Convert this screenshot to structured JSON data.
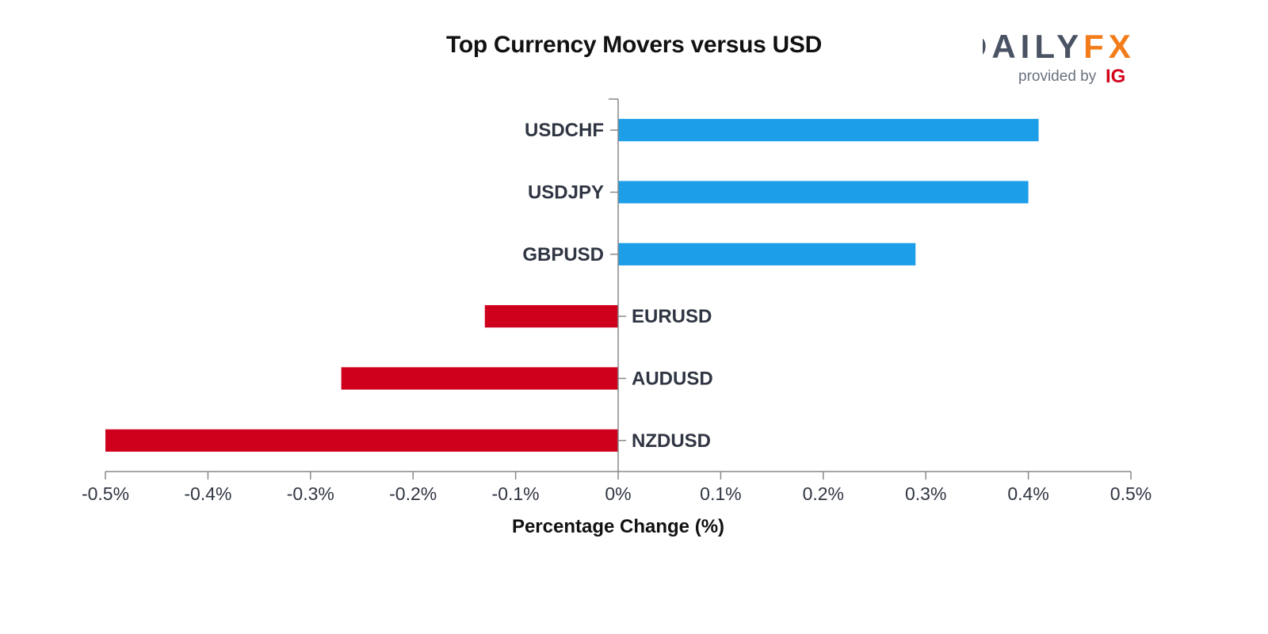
{
  "logo": {
    "part1": "DAILY",
    "part2": "FX",
    "sub": "provided by",
    "brand": "IG",
    "colors": {
      "dark": "#4a5363",
      "orange": "#f27c1a",
      "ig": "#d3031c"
    }
  },
  "chart_data": {
    "type": "bar",
    "orientation": "horizontal",
    "title": "Top Currency Movers versus USD",
    "xlabel": "Percentage Change (%)",
    "ylabel": "",
    "categories": [
      "USDCHF",
      "USDJPY",
      "GBPUSD",
      "EURUSD",
      "AUDUSD",
      "NZDUSD"
    ],
    "values": [
      0.41,
      0.4,
      0.29,
      -0.13,
      -0.27,
      -0.5
    ],
    "xlim": [
      -0.5,
      0.5
    ],
    "ticks": [
      -0.5,
      -0.4,
      -0.3,
      -0.2,
      -0.1,
      0,
      0.1,
      0.2,
      0.3,
      0.4,
      0.5
    ],
    "tick_labels": [
      "-0.5%",
      "-0.4%",
      "-0.3%",
      "-0.2%",
      "-0.1%",
      "0%",
      "0.1%",
      "0.2%",
      "0.3%",
      "0.4%",
      "0.5%"
    ],
    "grid": false,
    "legend": "none",
    "colors": {
      "positive": "#1d9ee8",
      "negative": "#cf001c",
      "axis": "#888888"
    }
  }
}
